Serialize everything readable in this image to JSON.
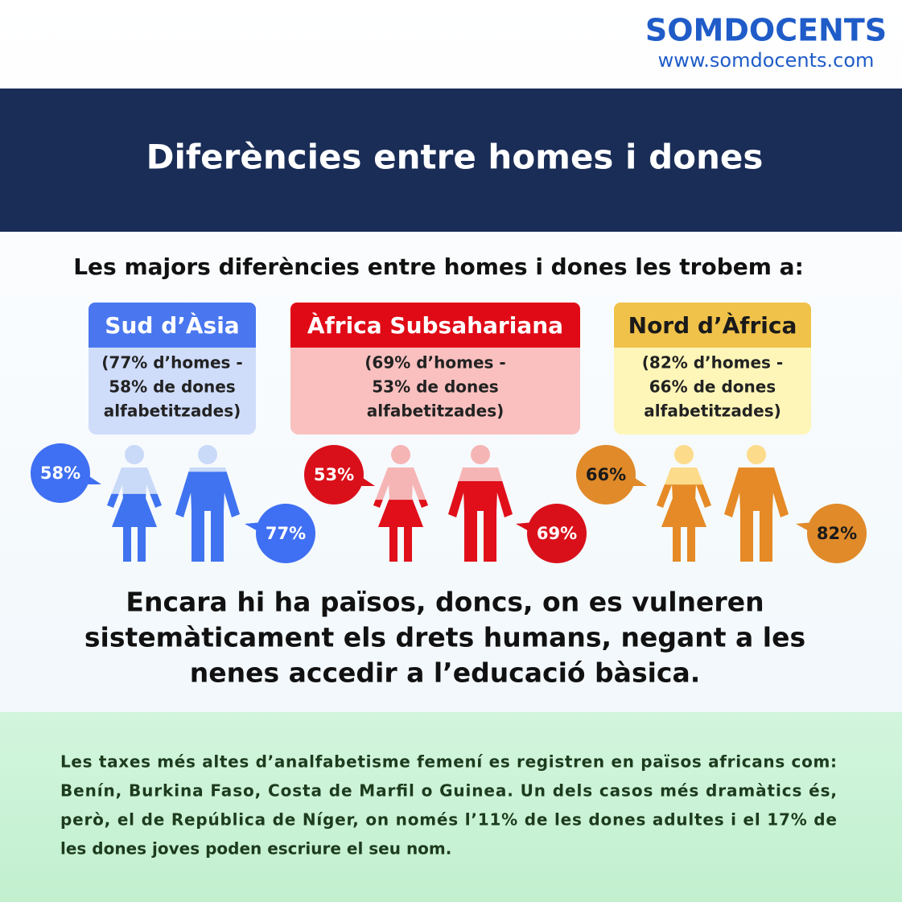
{
  "logo": {
    "name": "SOMDOCENTS",
    "url": "www.somdocents.com"
  },
  "title": "Diferències entre homes i dones",
  "subtitle": "Les majors diferències entre homes i dones les trobem a:",
  "regions": [
    {
      "name": "Sud d’Àsia",
      "details": [
        "(77% d’homes -",
        "58% de dones",
        "alfabetitzades)"
      ],
      "women": {
        "value": 58,
        "label": "58%"
      },
      "men": {
        "value": 77,
        "label": "77%"
      }
    },
    {
      "name": "Àfrica Subsahariana",
      "details": [
        "(69% d’homes -",
        "53% de dones",
        "alfabetitzades)"
      ],
      "women": {
        "value": 53,
        "label": "53%"
      },
      "men": {
        "value": 69,
        "label": "69%"
      }
    },
    {
      "name": "Nord d’Àfrica",
      "details": [
        "(82% d’homes -",
        "66% de dones",
        "alfabetitzades)"
      ],
      "women": {
        "value": 66,
        "label": "66%"
      },
      "men": {
        "value": 82,
        "label": "82%"
      }
    }
  ],
  "statement": [
    "Encara hi ha països, doncs, on es vulneren",
    "sistemàticament els drets humans, negant a les",
    "nenes accedir a l’educació bàsica."
  ],
  "note": [
    "Les taxes més altes d’analfabetisme femení es registren en països africans com:",
    "Benín, Burkina Faso, Costa de Marfil o Guinea. Un dels casos més dramàtics és,",
    "però, el de República de Níger, on només l’11% de les dones adultes i el 17% de",
    "les dones joves poden escriure el seu nom."
  ]
}
